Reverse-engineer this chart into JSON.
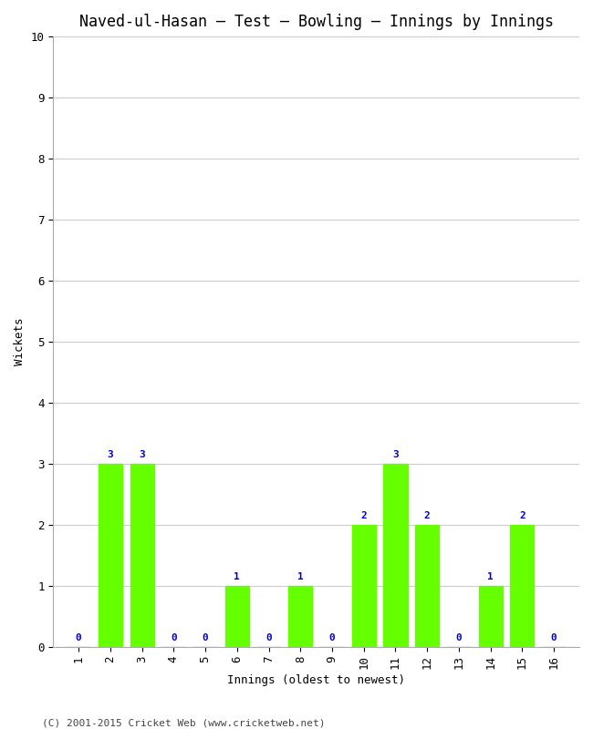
{
  "title": "Naved-ul-Hasan – Test – Bowling – Innings by Innings",
  "xlabel": "Innings (oldest to newest)",
  "ylabel": "Wickets",
  "innings": [
    1,
    2,
    3,
    4,
    5,
    6,
    7,
    8,
    9,
    10,
    11,
    12,
    13,
    14,
    15,
    16
  ],
  "wickets": [
    0,
    3,
    3,
    0,
    0,
    1,
    0,
    1,
    0,
    2,
    3,
    2,
    0,
    1,
    2,
    0
  ],
  "bar_color": "#66ff00",
  "bar_edge_color": "#66ff00",
  "label_color": "#0000cc",
  "ylim": [
    0,
    10
  ],
  "yticks": [
    0,
    1,
    2,
    3,
    4,
    5,
    6,
    7,
    8,
    9,
    10
  ],
  "background_color": "#ffffff",
  "grid_color": "#cccccc",
  "footer": "(C) 2001-2015 Cricket Web (www.cricketweb.net)",
  "title_fontsize": 12,
  "axis_label_fontsize": 9,
  "tick_fontsize": 9,
  "label_fontsize": 8,
  "footer_fontsize": 8,
  "bar_width": 0.75
}
